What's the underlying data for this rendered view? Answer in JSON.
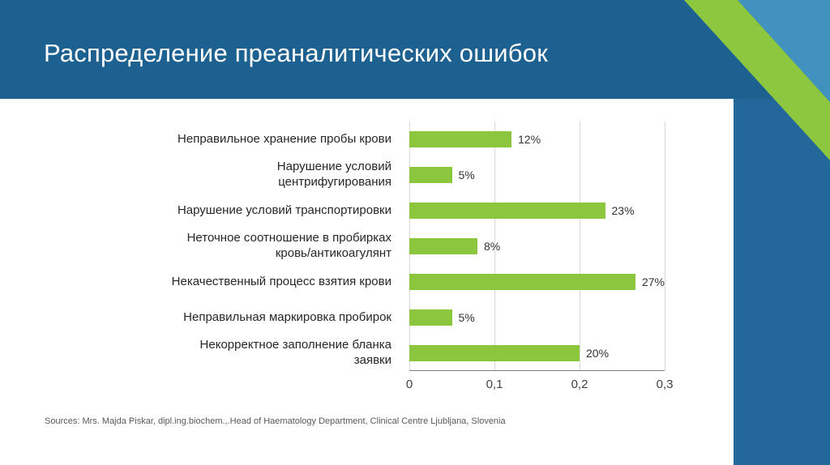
{
  "slide": {
    "title": "Распределение преаналитических ошибок",
    "source": "Sources: Mrs.  Majda Piskar, dipl.ing.biochem.,.Head of Haematology Department, Clinical Centre Ljubljana, Slovenia"
  },
  "colors": {
    "header_blue": "#1d6191",
    "right_strip_blue": "#24689b",
    "corner_light_blue": "#4192be",
    "accent_green": "#8dc63f",
    "bar_green": "#8cc63e",
    "gridline_gray": "#d9d9d9",
    "axis_gray": "#7f7f7f"
  },
  "chart_data": {
    "type": "bar",
    "orientation": "horizontal",
    "title": "",
    "xlabel": "",
    "ylabel": "",
    "categories": [
      "Неправильное хранение пробы крови",
      "Нарушение условий\nцентрифугирования",
      "Нарушение условий транспортировки",
      "Неточное соотношение в пробирках\nкровь/антикоагулянт",
      "Некачественный процесс взятия крови",
      "Неправильная маркировка пробирок",
      "Некорректное заполнение бланка\nзаявки"
    ],
    "values": [
      0.12,
      0.05,
      0.23,
      0.08,
      0.27,
      0.05,
      0.2
    ],
    "value_labels": [
      "12%",
      "5%",
      "23%",
      "8%",
      "27%",
      "5%",
      "20%"
    ],
    "xlim": [
      0,
      0.3
    ],
    "x_ticks": [
      "0",
      "0,1",
      "0,2",
      "0,3"
    ],
    "grid": true,
    "legend": false,
    "bar_color": "#8cc63e"
  }
}
